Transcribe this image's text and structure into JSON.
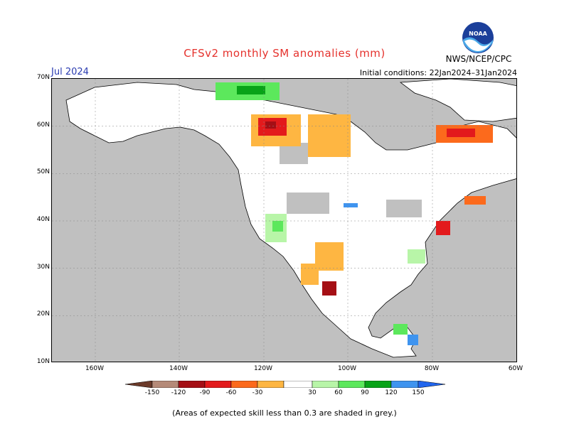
{
  "title": "CFSv2 monthly SM anomalies (mm)",
  "month": "Jul 2024",
  "initial_conditions": "Initial conditions: 22Jan2024–31Jan2024",
  "agency": "NWS/NCEP/CPC",
  "logo_text": "NOAA",
  "note": "(Areas of expected skill less than 0.3 are shaded in grey.)",
  "lat_labels": [
    "70N",
    "60N",
    "50N",
    "40N",
    "30N",
    "20N",
    "10N"
  ],
  "lon_labels": [
    "160W",
    "140W",
    "120W",
    "100W",
    "80W",
    "60W"
  ],
  "legend": {
    "ticks": [
      "-150",
      "-120",
      "-90",
      "-60",
      "-30",
      "30",
      "60",
      "90",
      "120",
      "150"
    ],
    "colors": [
      "#6b3a2a",
      "#b58a78",
      "#a50f15",
      "#e31a1c",
      "#fc6a1c",
      "#feb642",
      "#ffffff",
      "#b8f5a8",
      "#5ce85c",
      "#08a318",
      "#3f94ef",
      "#2266ee"
    ]
  },
  "colors": {
    "ocean": "#c0c0c0",
    "land_neutral": "#ffffff",
    "title": "#e5322d",
    "month": "#2a3bb0"
  }
}
